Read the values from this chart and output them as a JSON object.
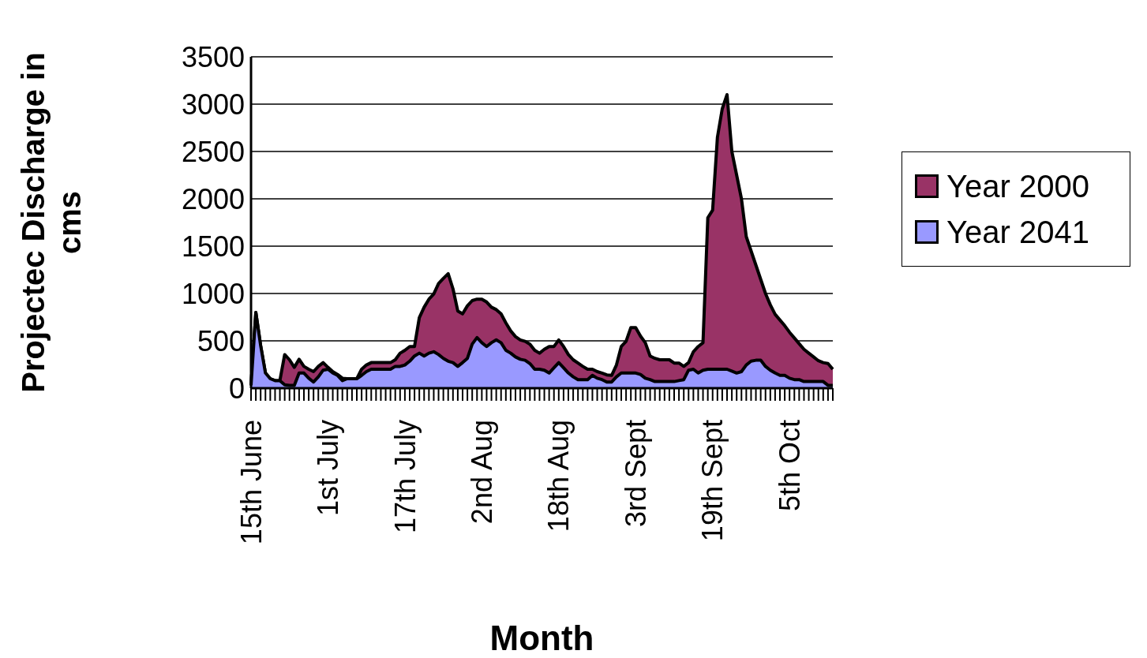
{
  "chart_data": {
    "type": "area",
    "xlabel": "Month",
    "ylabel": "Projectec Discharge in cms",
    "categories": [
      "15th June",
      null,
      null,
      null,
      null,
      null,
      null,
      null,
      null,
      null,
      null,
      null,
      null,
      null,
      null,
      null,
      "1st July",
      null,
      null,
      null,
      null,
      null,
      null,
      null,
      null,
      null,
      null,
      null,
      null,
      null,
      null,
      null,
      "17th July",
      null,
      null,
      null,
      null,
      null,
      null,
      null,
      null,
      null,
      null,
      null,
      null,
      null,
      null,
      null,
      "2nd Aug",
      null,
      null,
      null,
      null,
      null,
      null,
      null,
      null,
      null,
      null,
      null,
      null,
      null,
      null,
      null,
      "18th Aug",
      null,
      null,
      null,
      null,
      null,
      null,
      null,
      null,
      null,
      null,
      null,
      null,
      null,
      null,
      null,
      "3rd Sept",
      null,
      null,
      null,
      null,
      null,
      null,
      null,
      null,
      null,
      null,
      null,
      null,
      null,
      null,
      null,
      "19th Sept",
      null,
      null,
      null,
      null,
      null,
      null,
      null,
      null,
      null,
      null,
      null,
      null,
      null,
      null,
      null,
      "5th Oct",
      null,
      null,
      null,
      null,
      null,
      null,
      null,
      null,
      null
    ],
    "series": [
      {
        "name": "Year 2000",
        "color": "#993366",
        "values": [
          30,
          800,
          450,
          160,
          100,
          80,
          80,
          355,
          300,
          220,
          305,
          230,
          200,
          175,
          230,
          270,
          220,
          175,
          145,
          105,
          100,
          100,
          100,
          200,
          245,
          270,
          270,
          270,
          270,
          270,
          300,
          370,
          400,
          440,
          440,
          745,
          855,
          940,
          995,
          1105,
          1160,
          1210,
          1050,
          815,
          785,
          870,
          925,
          940,
          940,
          910,
          855,
          830,
          785,
          690,
          605,
          545,
          510,
          495,
          465,
          400,
          370,
          410,
          440,
          440,
          510,
          440,
          355,
          300,
          265,
          230,
          200,
          200,
          175,
          160,
          140,
          135,
          245,
          440,
          495,
          640,
          640,
          550,
          480,
          340,
          315,
          300,
          300,
          300,
          265,
          265,
          230,
          270,
          385,
          440,
          480,
          1800,
          1880,
          2650,
          2950,
          3100,
          2500,
          2250,
          2000,
          1600,
          1450,
          1300,
          1150,
          1000,
          880,
          780,
          720,
          660,
          590,
          530,
          470,
          410,
          370,
          330,
          290,
          270,
          260,
          200
        ]
      },
      {
        "name": "Year 2041",
        "color": "#9999ff",
        "values": [
          30,
          800,
          450,
          160,
          100,
          80,
          80,
          35,
          30,
          30,
          160,
          160,
          105,
          65,
          120,
          190,
          200,
          160,
          135,
          80,
          100,
          100,
          100,
          135,
          175,
          200,
          200,
          200,
          200,
          200,
          230,
          230,
          245,
          285,
          340,
          370,
          340,
          370,
          385,
          355,
          315,
          285,
          270,
          230,
          270,
          315,
          465,
          535,
          480,
          440,
          480,
          510,
          480,
          400,
          370,
          330,
          305,
          295,
          260,
          200,
          200,
          190,
          160,
          215,
          270,
          215,
          160,
          120,
          90,
          90,
          90,
          135,
          105,
          90,
          65,
          65,
          120,
          160,
          160,
          160,
          160,
          145,
          105,
          90,
          70,
          70,
          70,
          70,
          70,
          80,
          90,
          190,
          200,
          160,
          190,
          200,
          200,
          200,
          200,
          200,
          180,
          160,
          175,
          245,
          285,
          295,
          295,
          230,
          190,
          160,
          135,
          135,
          105,
          90,
          90,
          70,
          70,
          70,
          70,
          70,
          30,
          30
        ]
      }
    ],
    "ylim": [
      0,
      3500
    ],
    "yticks": [
      0,
      500,
      1000,
      1500,
      2000,
      2500,
      3000,
      3500
    ],
    "grid": "y",
    "legend": "right"
  }
}
